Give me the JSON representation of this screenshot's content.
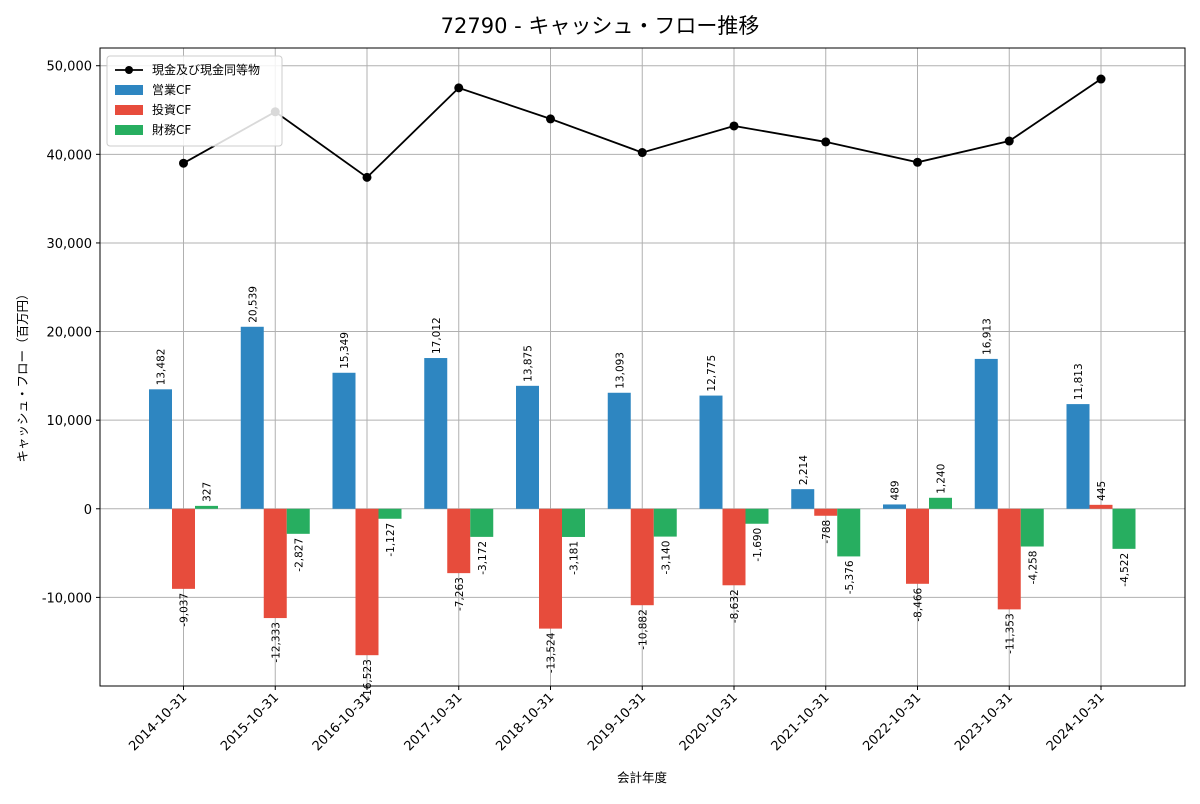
{
  "chart_data": {
    "type": "bar",
    "title": "72790 - キャッシュ・フロー推移",
    "xlabel": "会計年度",
    "ylabel": "キャッシュ・フロー（百万円）",
    "ylim": [
      -20000,
      52000
    ],
    "yticks": [
      -10000,
      0,
      10000,
      20000,
      30000,
      40000,
      50000
    ],
    "ytick_labels": [
      "-10,000",
      "0",
      "10,000",
      "20,000",
      "30,000",
      "40,000",
      "50,000"
    ],
    "grid": true,
    "legend_position": "top-left",
    "categories": [
      "2014-10-31",
      "2015-10-31",
      "2016-10-31",
      "2017-10-31",
      "2018-10-31",
      "2019-10-31",
      "2020-10-31",
      "2021-10-31",
      "2022-10-31",
      "2023-10-31",
      "2024-10-31"
    ],
    "series": [
      {
        "name": "営業CF",
        "kind": "bar",
        "color": "#2e86c1",
        "values": [
          13482,
          20539,
          15349,
          17012,
          13875,
          13093,
          12775,
          2214,
          489,
          16913,
          11813
        ],
        "labels": [
          "13,482",
          "20,539",
          "15,349",
          "17,012",
          "13,875",
          "13,093",
          "12,775",
          "2,214",
          "489",
          "16,913",
          "11,813"
        ]
      },
      {
        "name": "投資CF",
        "kind": "bar",
        "color": "#e74c3c",
        "values": [
          -9037,
          -12333,
          -16523,
          -7263,
          -13524,
          -10882,
          -8632,
          -788,
          -8466,
          -11353,
          445
        ],
        "labels": [
          "-9,037",
          "-12,333",
          "-16,523",
          "-7,263",
          "-13,524",
          "-10,882",
          "-8,632",
          "-788",
          "-8,466",
          "-11,353",
          "445"
        ]
      },
      {
        "name": "財務CF",
        "kind": "bar",
        "color": "#27ae60",
        "values": [
          327,
          -2827,
          -1127,
          -3172,
          -3181,
          -3140,
          -1690,
          -5376,
          1240,
          -4258,
          -4522
        ],
        "labels": [
          "327",
          "-2,827",
          "-1,127",
          "-3,172",
          "-3,181",
          "-3,140",
          "-1,690",
          "-5,376",
          "1,240",
          "-4,258",
          "-4,522"
        ]
      },
      {
        "name": "現金及び現金同等物",
        "kind": "line",
        "color": "#000000",
        "values": [
          39000,
          44800,
          37400,
          47500,
          44000,
          40200,
          43200,
          41400,
          39100,
          41500,
          48500
        ]
      }
    ]
  }
}
